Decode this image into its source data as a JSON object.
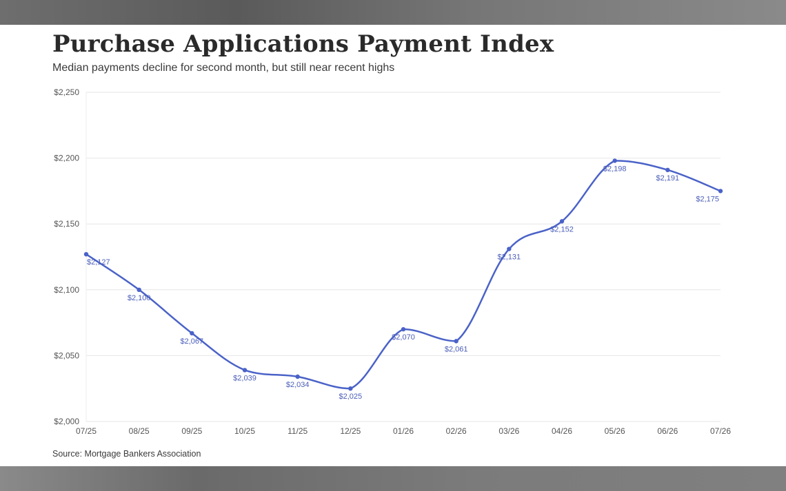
{
  "header": {
    "title": "Purchase Applications Payment Index",
    "subtitle": "Median payments decline for second month, but still near recent highs"
  },
  "footer": {
    "source": "Source: Mortgage Bankers Association"
  },
  "colors": {
    "line": "#4a62c8",
    "grid": "#e6e6e6",
    "background": "#ffffff"
  },
  "chart_data": {
    "type": "line",
    "title": "Purchase Applications Payment Index",
    "subtitle": "Median payments decline for second month, but still near recent highs",
    "xlabel": "",
    "ylabel": "",
    "categories": [
      "07/25",
      "08/25",
      "09/25",
      "10/25",
      "11/25",
      "12/25",
      "01/26",
      "02/26",
      "03/26",
      "04/26",
      "05/26",
      "06/26",
      "07/26"
    ],
    "series": [
      {
        "values": [
          2127,
          2100,
          2067,
          2039,
          2034,
          2025,
          2070,
          2061,
          2131,
          2152,
          2198,
          2191,
          2175
        ]
      }
    ],
    "data_labels": [
      "$2,127",
      "$2,100",
      "$2,067",
      "$2,039",
      "$2,034",
      "$2,025",
      "$2,070",
      "$2,061",
      "$2,131",
      "$2,152",
      "$2,198",
      "$2,191",
      "$2,175"
    ],
    "ylim": [
      2000,
      2250
    ],
    "y_ticks": [
      2000,
      2050,
      2100,
      2150,
      2200,
      2250
    ],
    "y_tick_labels": [
      "$2,000",
      "$2,050",
      "$2,100",
      "$2,150",
      "$2,200",
      "$2,250"
    ],
    "grid": true,
    "legend": "none"
  }
}
